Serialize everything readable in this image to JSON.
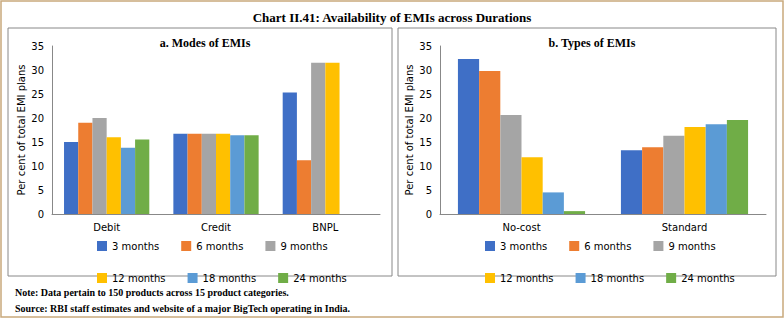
{
  "title": "Chart II.41: Availability of EMIs across Durations",
  "note": "Note: Data pertain to 150 products across 15 product categories.",
  "source": "Source: RBI staff estimates and website of a major BigTech operating in India.",
  "chart_data": [
    {
      "type": "bar",
      "title": "a. Modes of EMIs",
      "y_label": "Per cent of total EMI plans",
      "categories": [
        "Debit",
        "Credit",
        "BNPL"
      ],
      "series": [
        {
          "name": "3 months",
          "color": "#3f6fc6",
          "values": [
            15.0,
            16.7,
            25.3
          ]
        },
        {
          "name": "6 months",
          "color": "#ed7d31",
          "values": [
            19.0,
            16.7,
            11.2
          ]
        },
        {
          "name": "9 months",
          "color": "#a5a5a5",
          "values": [
            20.0,
            16.7,
            31.5
          ]
        },
        {
          "name": "12 months",
          "color": "#ffc000",
          "values": [
            16.0,
            16.7,
            31.5
          ]
        },
        {
          "name": "18 months",
          "color": "#5b9bd5",
          "values": [
            13.8,
            16.4,
            0
          ]
        },
        {
          "name": "24 months",
          "color": "#70ad47",
          "values": [
            15.5,
            16.4,
            0
          ]
        }
      ],
      "ylim": [
        0,
        35
      ],
      "yticks": [
        0,
        5,
        10,
        15,
        20,
        25,
        30,
        35
      ],
      "grid": false,
      "legend": "bottom"
    },
    {
      "type": "bar",
      "title": "b. Types of EMIs",
      "y_label": "Per cent of total EMI plans",
      "categories": [
        "No-cost",
        "Standard"
      ],
      "series": [
        {
          "name": "3 months",
          "color": "#3f6fc6",
          "values": [
            32.3,
            13.3
          ]
        },
        {
          "name": "6 months",
          "color": "#ed7d31",
          "values": [
            29.8,
            13.9
          ]
        },
        {
          "name": "9 months",
          "color": "#a5a5a5",
          "values": [
            20.6,
            16.3
          ]
        },
        {
          "name": "12 months",
          "color": "#ffc000",
          "values": [
            11.8,
            18.1
          ]
        },
        {
          "name": "18 months",
          "color": "#5b9bd5",
          "values": [
            4.5,
            18.7
          ]
        },
        {
          "name": "24 months",
          "color": "#70ad47",
          "values": [
            0.6,
            19.6
          ]
        }
      ],
      "ylim": [
        0,
        35
      ],
      "yticks": [
        0,
        5,
        10,
        15,
        20,
        25,
        30,
        35
      ],
      "grid": false,
      "legend": "bottom"
    }
  ]
}
